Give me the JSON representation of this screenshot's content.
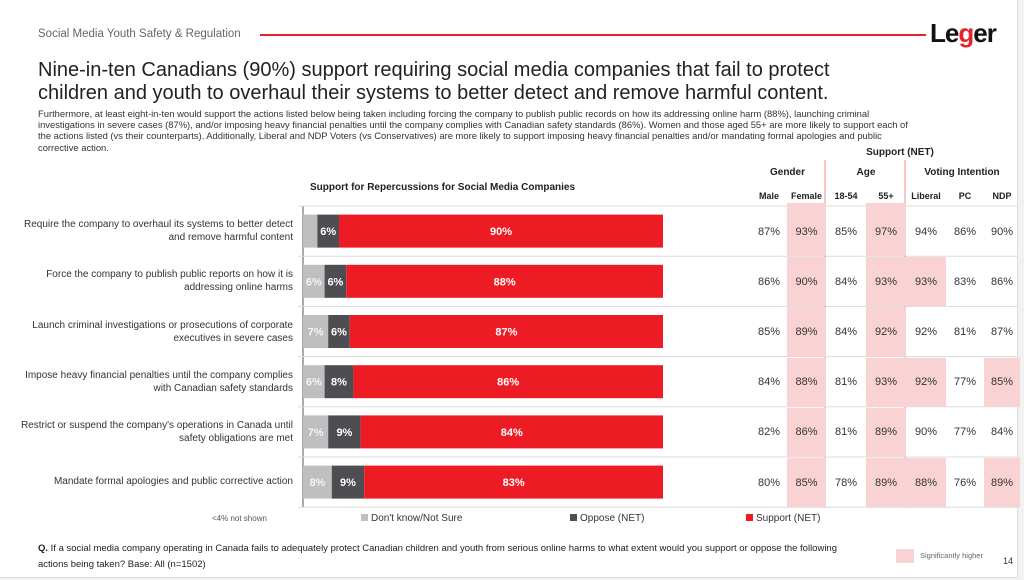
{
  "header": {
    "section_label": "Social Media Youth Safety & Regulation",
    "logo_text_pre": "Le",
    "logo_text_g": "g",
    "logo_text_post": "er",
    "headline": "Nine-in-ten Canadians (90%) support requiring social media companies that fail to protect children and youth to overhaul their systems to better detect and remove harmful content.",
    "subtext": "Furthermore, at least eight-in-ten would support the actions listed below being taken including forcing the company to publish public records on how its addressing online harm (88%), launching criminal investigations in severe cases (87%), and/or imposing heavy financial penalties until the company complies with Canadian safety standards (86%). Women and those aged 55+ are more likely to support each of the actions listed (vs their counterparts). Additionally, Liberal and NDP Voters (vs Conservatives) are more likely to support imposing heavy financial penalties and/or mandating formal apologies and public corrective action."
  },
  "colors": {
    "accent": "#e8202a",
    "dont_know": "#bfbfbf",
    "oppose": "#4d4d52",
    "support": "#ed1c24",
    "significant": "#f9d3d4"
  },
  "chart_data": {
    "type": "bar",
    "orientation": "horizontal-stacked",
    "title": "Support for Repercussions for Social Media Companies",
    "categories": [
      "Require the company to overhaul its systems to better detect and remove harmful content",
      "Force the company to publish public reports on how it is addressing online harms",
      "Launch criminal investigations or prosecutions of corporate executives in severe cases",
      "Impose heavy financial penalties until the company complies with Canadian safety standards",
      "Restrict or suspend the company's operations in Canada until safety obligations are met",
      "Mandate formal apologies and public corrective action"
    ],
    "series": [
      {
        "name": "Don't know/Not Sure",
        "values": [
          4,
          6,
          7,
          6,
          7,
          8
        ],
        "labels": [
          "",
          "6%",
          "7%",
          "6%",
          "7%",
          "8%"
        ]
      },
      {
        "name": "Oppose (NET)",
        "values": [
          6,
          6,
          6,
          8,
          9,
          9
        ],
        "labels": [
          "6%",
          "6%",
          "6%",
          "8%",
          "9%",
          "9%"
        ]
      },
      {
        "name": "Support (NET)",
        "values": [
          90,
          88,
          87,
          86,
          84,
          83
        ],
        "labels": [
          "90%",
          "88%",
          "87%",
          "86%",
          "84%",
          "83%"
        ]
      }
    ],
    "xlim": [
      0,
      100
    ],
    "note": "<4% not shown",
    "legend_position": "bottom"
  },
  "table": {
    "title": "Support (NET)",
    "groups": [
      {
        "label": "Gender",
        "columns": [
          "Male",
          "Female"
        ]
      },
      {
        "label": "Age",
        "columns": [
          "18-54",
          "55+"
        ]
      },
      {
        "label": "Voting Intention",
        "columns": [
          "Liberal",
          "PC",
          "NDP"
        ]
      }
    ],
    "rows": [
      {
        "values": [
          "87%",
          "93%",
          "85%",
          "97%",
          "94%",
          "86%",
          "90%"
        ],
        "significant": [
          false,
          true,
          false,
          true,
          false,
          false,
          false
        ]
      },
      {
        "values": [
          "86%",
          "90%",
          "84%",
          "93%",
          "93%",
          "83%",
          "86%"
        ],
        "significant": [
          false,
          true,
          false,
          true,
          true,
          false,
          false
        ]
      },
      {
        "values": [
          "85%",
          "89%",
          "84%",
          "92%",
          "92%",
          "81%",
          "87%"
        ],
        "significant": [
          false,
          true,
          false,
          true,
          false,
          false,
          false
        ]
      },
      {
        "values": [
          "84%",
          "88%",
          "81%",
          "93%",
          "92%",
          "77%",
          "85%"
        ],
        "significant": [
          false,
          true,
          false,
          true,
          true,
          false,
          true
        ]
      },
      {
        "values": [
          "82%",
          "86%",
          "81%",
          "89%",
          "90%",
          "77%",
          "84%"
        ],
        "significant": [
          false,
          true,
          false,
          true,
          false,
          false,
          false
        ]
      },
      {
        "values": [
          "80%",
          "85%",
          "78%",
          "89%",
          "88%",
          "76%",
          "89%"
        ],
        "significant": [
          false,
          true,
          false,
          true,
          true,
          false,
          true
        ]
      }
    ]
  },
  "footer": {
    "question_prefix": "Q.",
    "question": "If a social media company operating in Canada fails to adequately protect Canadian children and youth from serious online harms to what extent would you support or oppose the following actions being taken? Base: All (n=1502)",
    "significance_legend": "Significantly higher",
    "page_number": "14"
  }
}
